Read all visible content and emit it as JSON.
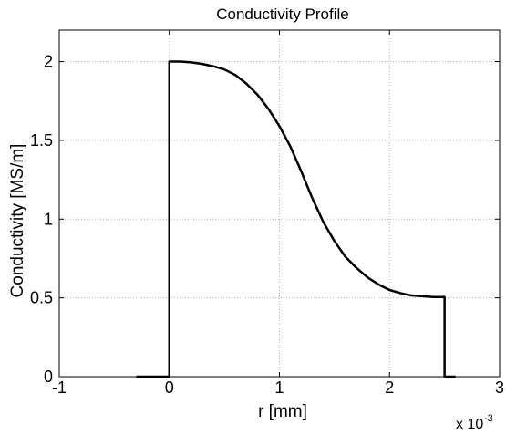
{
  "chart_data": {
    "type": "line",
    "title": "Conductivity Profile",
    "xlabel": "r [mm]",
    "ylabel": "Conductivity [MS/m]",
    "xlim": [
      -0.001,
      0.003
    ],
    "ylim": [
      0,
      2.2
    ],
    "x_scale_factor_label": "x 10",
    "x_scale_factor_exponent": "-3",
    "x_ticks": [
      -0.001,
      0,
      0.001,
      0.002,
      0.003
    ],
    "x_tick_labels": [
      "-1",
      "0",
      "1",
      "2",
      "3"
    ],
    "y_ticks": [
      0,
      0.5,
      1,
      1.5,
      2
    ],
    "y_tick_labels": [
      "0",
      "0.5",
      "1",
      "1.5",
      "2"
    ],
    "grid": true,
    "line_color": "#000000",
    "series": [
      {
        "x": [
          -0.0003,
          0,
          0,
          0.0001,
          0.0002,
          0.0003,
          0.0004,
          0.0005,
          0.0006,
          0.0007,
          0.0008,
          0.0009,
          0.001,
          0.0011,
          0.0012,
          0.0013,
          0.0014,
          0.0015,
          0.0016,
          0.0017,
          0.0018,
          0.0019,
          0.002,
          0.0021,
          0.0022,
          0.0023,
          0.0024,
          0.0025,
          0.0025,
          0.0026
        ],
        "y": [
          0,
          0,
          2.0,
          2.0,
          1.995,
          1.985,
          1.97,
          1.95,
          1.915,
          1.86,
          1.79,
          1.7,
          1.59,
          1.46,
          1.3,
          1.13,
          0.98,
          0.86,
          0.76,
          0.69,
          0.63,
          0.585,
          0.55,
          0.53,
          0.515,
          0.51,
          0.505,
          0.505,
          0,
          0
        ]
      }
    ]
  }
}
